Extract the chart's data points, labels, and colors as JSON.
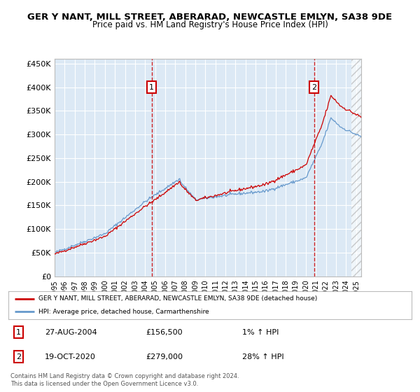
{
  "title": "GER Y NANT, MILL STREET, ABERARAD, NEWCASTLE EMLYN, SA38 9DE",
  "subtitle": "Price paid vs. HM Land Registry's House Price Index (HPI)",
  "bg_color": "#dce9f5",
  "red_line_color": "#cc0000",
  "blue_line_color": "#6699cc",
  "grid_color": "#ffffff",
  "sale1_date": 2004.65,
  "sale1_price": 156500,
  "sale2_date": 2020.8,
  "sale2_price": 279000,
  "xmin": 1995,
  "xmax": 2025.5,
  "ymin": 0,
  "ymax": 460000,
  "yticks": [
    0,
    50000,
    100000,
    150000,
    200000,
    250000,
    300000,
    350000,
    400000,
    450000
  ],
  "footer_line1": "Contains HM Land Registry data © Crown copyright and database right 2024.",
  "footer_line2": "This data is licensed under the Open Government Licence v3.0.",
  "legend_entry1": "GER Y NANT, MILL STREET, ABERARAD, NEWCASTLE EMLYN, SA38 9DE (detached house)",
  "legend_entry2": "HPI: Average price, detached house, Carmarthenshire",
  "table_row1": [
    "1",
    "27-AUG-2004",
    "£156,500",
    "1% ↑ HPI"
  ],
  "table_row2": [
    "2",
    "19-OCT-2020",
    "£279,000",
    "28% ↑ HPI"
  ]
}
